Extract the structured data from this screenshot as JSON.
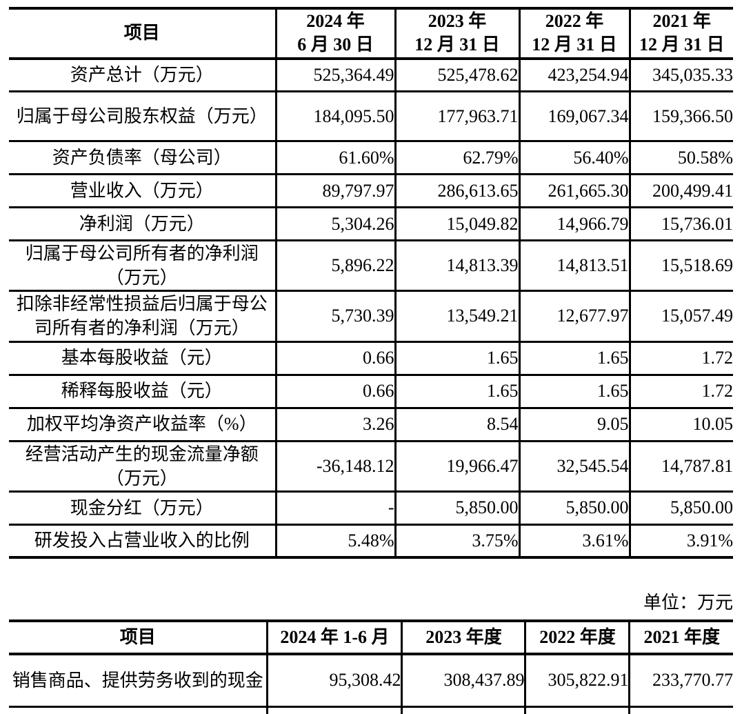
{
  "page": {
    "background": "#ffffff",
    "text_color": "#000000",
    "rule_color": "#000000"
  },
  "unit_note": "单位：万元",
  "table1": {
    "header": {
      "item": "项目",
      "periods": [
        "2024 年\n6 月 30 日",
        "2023 年\n12 月 31 日",
        "2022 年\n12 月 31 日",
        "2021 年\n12 月 31 日"
      ]
    },
    "rows": [
      {
        "label": "资产总计（万元）",
        "values": [
          "525,364.49",
          "525,478.62",
          "423,254.94",
          "345,035.33"
        ],
        "tall": false
      },
      {
        "label": "归属于母公司股东权益（万元）",
        "values": [
          "184,095.50",
          "177,963.71",
          "169,067.34",
          "159,366.50"
        ],
        "tall": true
      },
      {
        "label": "资产负债率（母公司）",
        "values": [
          "61.60%",
          "62.79%",
          "56.40%",
          "50.58%"
        ],
        "tall": false
      },
      {
        "label": "营业收入（万元）",
        "values": [
          "89,797.97",
          "286,613.65",
          "261,665.30",
          "200,499.41"
        ],
        "tall": false
      },
      {
        "label": "净利润（万元）",
        "values": [
          "5,304.26",
          "15,049.82",
          "14,966.79",
          "15,736.01"
        ],
        "tall": false
      },
      {
        "label": "归属于母公司所有者的净利润（万元）",
        "values": [
          "5,896.22",
          "14,813.39",
          "14,813.51",
          "15,518.69"
        ],
        "tall": true
      },
      {
        "label": "扣除非经常性损益后归属于母公司所有者的净利润（万元）",
        "values": [
          "5,730.39",
          "13,549.21",
          "12,677.97",
          "15,057.49"
        ],
        "tall": true
      },
      {
        "label": "基本每股收益（元）",
        "values": [
          "0.66",
          "1.65",
          "1.65",
          "1.72"
        ],
        "tall": false
      },
      {
        "label": "稀释每股收益（元）",
        "values": [
          "0.66",
          "1.65",
          "1.65",
          "1.72"
        ],
        "tall": false
      },
      {
        "label": "加权平均净资产收益率（%）",
        "values": [
          "3.26",
          "8.54",
          "9.05",
          "10.05"
        ],
        "tall": false
      },
      {
        "label": "经营活动产生的现金流量净额（万元）",
        "values": [
          "-36,148.12",
          "19,966.47",
          "32,545.54",
          "14,787.81"
        ],
        "tall": true
      },
      {
        "label": "现金分红（万元）",
        "values": [
          "-",
          "5,850.00",
          "5,850.00",
          "5,850.00"
        ],
        "tall": false
      },
      {
        "label": "研发投入占营业收入的比例",
        "values": [
          "5.48%",
          "3.75%",
          "3.61%",
          "3.91%"
        ],
        "tall": false
      }
    ]
  },
  "table2": {
    "header": {
      "item": "项目",
      "periods": [
        "2024 年 1-6 月",
        "2023 年度",
        "2022 年度",
        "2021 年度"
      ]
    },
    "rows": [
      {
        "label": "销售商品、提供劳务收到的现金",
        "values": [
          "95,308.42",
          "308,437.89",
          "305,822.91",
          "233,770.77"
        ],
        "tall": true
      }
    ],
    "truncated_row": true
  }
}
